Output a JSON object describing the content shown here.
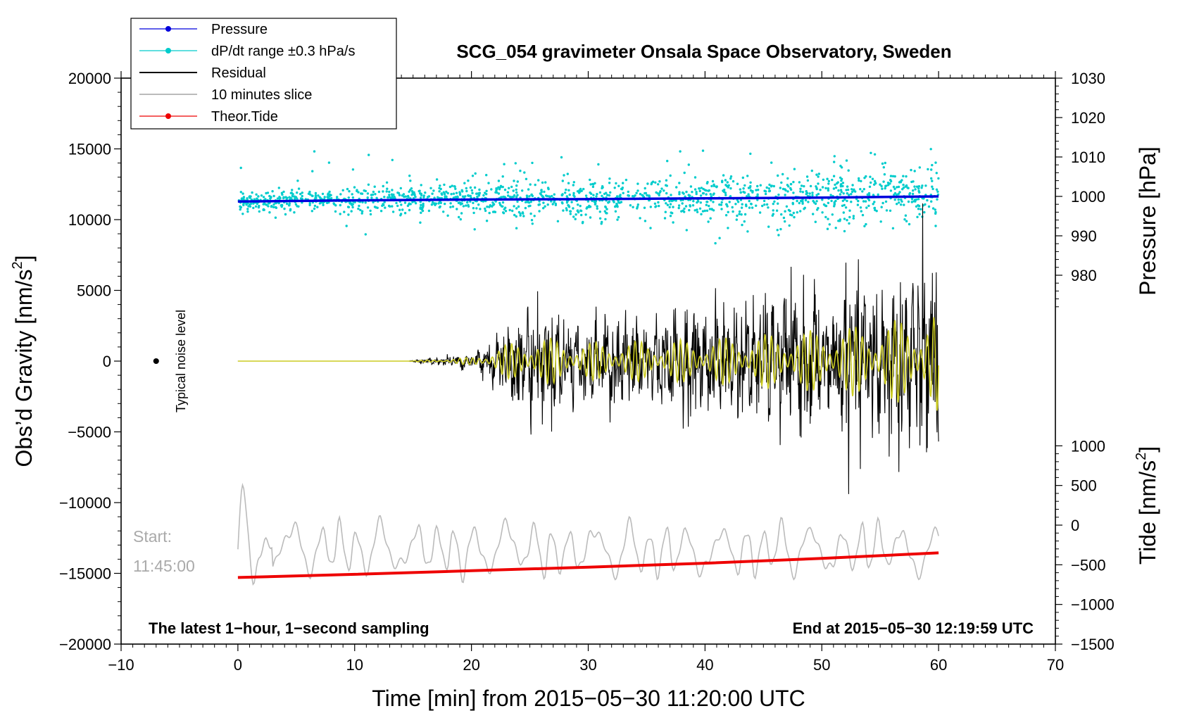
{
  "colors": {
    "pressure": "#0000dd",
    "dpdt": "#00cccc",
    "residual": "#000000",
    "slice": "#bbbbbb",
    "tide": "#ee0000",
    "filtered": "#cccc22"
  },
  "chart_data": {
    "type": "scatter",
    "title": "SCG_054 gravimeter Onsala Space Observatory, Sweden",
    "xlabel": "Time [min] from 2015−05−30 11:20:00 UTC",
    "ylabel_left": "Obs’d Gravity [nm/s²]",
    "ylabel_left_main": "Obs’d Gravity [nm/s",
    "ylabel_left_sup": "2",
    "ylabel_left_end": "]",
    "ylabel_right_top": "Pressure [hPa]",
    "ylabel_right_bottom": "Tide [nm/s²]",
    "ylabel_right_bottom_main": "Tide [nm/s",
    "ylabel_right_bottom_sup": "2",
    "ylabel_right_bottom_end": "]",
    "xlim": [
      -10,
      70
    ],
    "ylim_left": [
      -20000,
      20000
    ],
    "ylim_pressure": [
      970,
      1030
    ],
    "ylim_tide": [
      -1500,
      1500
    ],
    "x_ticks": [
      -10,
      0,
      10,
      20,
      30,
      40,
      50,
      60,
      70
    ],
    "x_tick_labels": [
      "−10",
      "0",
      "10",
      "20",
      "30",
      "40",
      "50",
      "60",
      "70"
    ],
    "y_left_ticks": [
      -20000,
      -15000,
      -10000,
      -5000,
      0,
      5000,
      10000,
      15000,
      20000
    ],
    "y_left_tick_labels": [
      "−20000",
      "−15000",
      "−10000",
      "−5000",
      "0",
      "5000",
      "10000",
      "15000",
      "20000"
    ],
    "pressure_ticks": [
      980,
      990,
      1000,
      1010,
      1020,
      1030
    ],
    "pressure_tick_labels": [
      "980",
      "990",
      "1000",
      "1010",
      "1020",
      "1030"
    ],
    "tide_ticks": [
      -1500,
      -1000,
      -500,
      0,
      500,
      1000
    ],
    "tide_tick_labels": [
      "−1500",
      "−1000",
      "−500",
      "0",
      "500",
      "1000"
    ],
    "legend": [
      {
        "label": "Pressure",
        "style": "line-dot",
        "color": "#0000dd"
      },
      {
        "label": "dP/dt range ±0.3 hPa/s",
        "style": "line-dot",
        "color": "#00cccc"
      },
      {
        "label": "Residual",
        "style": "line",
        "color": "#000000"
      },
      {
        "label": "10 minutes slice",
        "style": "line",
        "color": "#bbbbbb"
      },
      {
        "label": "Theor.Tide",
        "style": "line-dot",
        "color": "#ee0000"
      }
    ],
    "legend_position": "top-left",
    "series": [
      {
        "name": "Pressure",
        "axis": "pressure",
        "x": [
          0,
          10,
          20,
          30,
          40,
          50,
          60
        ],
        "values": [
          998.7,
          999.0,
          999.2,
          999.3,
          999.5,
          999.7,
          1000.0
        ]
      },
      {
        "name": "Theor.Tide",
        "axis": "tide",
        "x": [
          0,
          10,
          20,
          30,
          40,
          50,
          60
        ],
        "values": [
          -660,
          -620,
          -575,
          -530,
          -480,
          -420,
          -350
        ]
      },
      {
        "name": "Residual",
        "axis": "left",
        "description_envelope_x": [
          0,
          14.5,
          20,
          25,
          30,
          40,
          50,
          55,
          60
        ],
        "envelope_nm_s2": [
          0,
          0,
          600,
          4000,
          3000,
          3500,
          5000,
          6000,
          8000
        ]
      },
      {
        "name": "dP/dt range ±0.3 hPa/s",
        "axis": "pressure",
        "center_hPa": 1000,
        "spread_hPa": 10
      }
    ],
    "noise_marker": {
      "x": -7,
      "y": 0,
      "label": "Typical noise level"
    },
    "slice_label_line1": "Start:",
    "slice_label_line2": "11:45:00",
    "footer_left": "The latest 1−hour, 1−second sampling",
    "footer_right": "End at 2015−05−30 12:19:59 UTC"
  }
}
